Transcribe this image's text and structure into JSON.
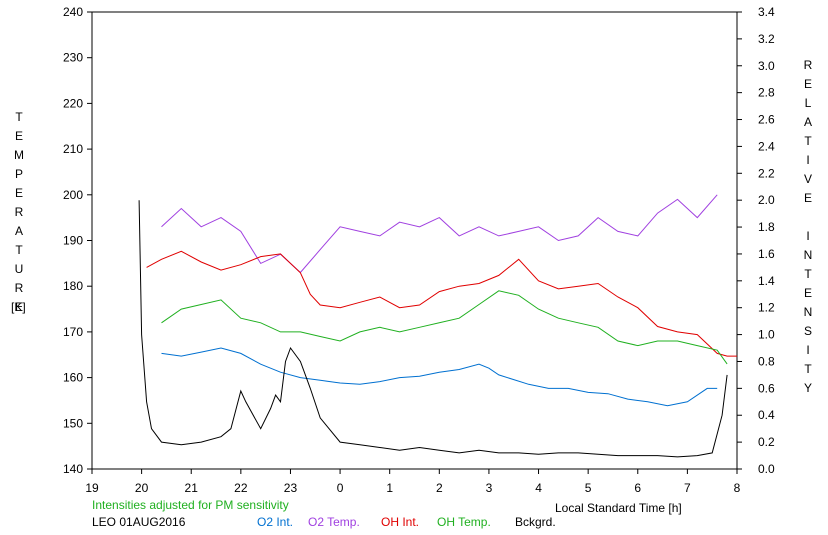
{
  "chart_data": {
    "type": "line",
    "left_axis": {
      "label": "TEMPERATURE",
      "unit": "[K]",
      "ylim": [
        140,
        240
      ],
      "ticks": [
        140,
        150,
        160,
        170,
        180,
        190,
        200,
        210,
        220,
        230,
        240
      ]
    },
    "right_axis": {
      "label": "RELATIVE INTENSITY",
      "ylim": [
        0.0,
        3.4
      ],
      "ticks": [
        "0.0",
        "0.2",
        "0.4",
        "0.6",
        "0.8",
        "1.0",
        "1.2",
        "1.4",
        "1.6",
        "1.8",
        "2.0",
        "2.2",
        "2.4",
        "2.6",
        "2.8",
        "3.0",
        "3.2",
        "3.4"
      ]
    },
    "x_axis": {
      "label": "Local Standard Time [h]",
      "ticks": [
        "19",
        "20",
        "21",
        "22",
        "23",
        "0",
        "1",
        "2",
        "3",
        "4",
        "5",
        "6",
        "7",
        "8"
      ],
      "range": [
        19,
        32
      ]
    },
    "grid": false,
    "note": "Intensities adjusted for PM sensitivity",
    "station_date": "LEO 01AUG2016",
    "legend_placement": "bottom",
    "series": [
      {
        "name": "O2 Int.",
        "axis": "right",
        "color": "#0070d0",
        "points": [
          [
            20.4,
            0.86
          ],
          [
            20.8,
            0.84
          ],
          [
            21.2,
            0.87
          ],
          [
            21.6,
            0.9
          ],
          [
            22.0,
            0.86
          ],
          [
            22.4,
            0.78
          ],
          [
            22.8,
            0.72
          ],
          [
            23.2,
            0.68
          ],
          [
            23.6,
            0.66
          ],
          [
            24.0,
            0.64
          ],
          [
            24.4,
            0.63
          ],
          [
            24.8,
            0.65
          ],
          [
            25.2,
            0.68
          ],
          [
            25.6,
            0.69
          ],
          [
            26.0,
            0.72
          ],
          [
            26.4,
            0.74
          ],
          [
            26.8,
            0.78
          ],
          [
            27.0,
            0.75
          ],
          [
            27.2,
            0.7
          ],
          [
            27.8,
            0.63
          ],
          [
            28.2,
            0.6
          ],
          [
            28.6,
            0.6
          ],
          [
            29.0,
            0.57
          ],
          [
            29.4,
            0.56
          ],
          [
            29.8,
            0.52
          ],
          [
            30.2,
            0.5
          ],
          [
            30.6,
            0.47
          ],
          [
            31.0,
            0.5
          ],
          [
            31.4,
            0.6
          ],
          [
            31.6,
            0.6
          ]
        ]
      },
      {
        "name": "O2 Temp.",
        "axis": "left",
        "color": "#a040e0",
        "points": [
          [
            20.4,
            193
          ],
          [
            20.8,
            197
          ],
          [
            21.2,
            193
          ],
          [
            21.6,
            195
          ],
          [
            22.0,
            192
          ],
          [
            22.4,
            185
          ],
          [
            22.8,
            187
          ],
          [
            23.2,
            183
          ],
          [
            23.6,
            188
          ],
          [
            24.0,
            193
          ],
          [
            24.4,
            192
          ],
          [
            24.8,
            191
          ],
          [
            25.2,
            194
          ],
          [
            25.6,
            193
          ],
          [
            26.0,
            195
          ],
          [
            26.4,
            191
          ],
          [
            26.8,
            193
          ],
          [
            27.2,
            191
          ],
          [
            27.6,
            192
          ],
          [
            28.0,
            193
          ],
          [
            28.4,
            190
          ],
          [
            28.8,
            191
          ],
          [
            29.2,
            195
          ],
          [
            29.6,
            192
          ],
          [
            30.0,
            191
          ],
          [
            30.4,
            196
          ],
          [
            30.8,
            199
          ],
          [
            31.2,
            195
          ],
          [
            31.6,
            200
          ]
        ]
      },
      {
        "name": "OH Int.",
        "axis": "right",
        "color": "#e00000",
        "points": [
          [
            20.1,
            1.5
          ],
          [
            20.4,
            1.56
          ],
          [
            20.8,
            1.62
          ],
          [
            21.2,
            1.54
          ],
          [
            21.6,
            1.48
          ],
          [
            22.0,
            1.52
          ],
          [
            22.4,
            1.58
          ],
          [
            22.8,
            1.6
          ],
          [
            23.2,
            1.46
          ],
          [
            23.4,
            1.3
          ],
          [
            23.6,
            1.22
          ],
          [
            24.0,
            1.2
          ],
          [
            24.4,
            1.24
          ],
          [
            24.8,
            1.28
          ],
          [
            25.2,
            1.2
          ],
          [
            25.6,
            1.22
          ],
          [
            26.0,
            1.32
          ],
          [
            26.4,
            1.36
          ],
          [
            26.8,
            1.38
          ],
          [
            27.2,
            1.44
          ],
          [
            27.6,
            1.56
          ],
          [
            28.0,
            1.4
          ],
          [
            28.4,
            1.34
          ],
          [
            28.8,
            1.36
          ],
          [
            29.2,
            1.38
          ],
          [
            29.6,
            1.28
          ],
          [
            30.0,
            1.2
          ],
          [
            30.4,
            1.06
          ],
          [
            30.8,
            1.02
          ],
          [
            31.2,
            1.0
          ],
          [
            31.6,
            0.86
          ],
          [
            31.8,
            0.84
          ],
          [
            32.0,
            0.84
          ]
        ]
      },
      {
        "name": "OH Temp.",
        "axis": "left",
        "color": "#20b020",
        "points": [
          [
            20.4,
            172
          ],
          [
            20.8,
            175
          ],
          [
            21.2,
            176
          ],
          [
            21.6,
            177
          ],
          [
            22.0,
            173
          ],
          [
            22.4,
            172
          ],
          [
            22.8,
            170
          ],
          [
            23.2,
            170
          ],
          [
            23.6,
            169
          ],
          [
            24.0,
            168
          ],
          [
            24.4,
            170
          ],
          [
            24.8,
            171
          ],
          [
            25.2,
            170
          ],
          [
            25.6,
            171
          ],
          [
            26.0,
            172
          ],
          [
            26.4,
            173
          ],
          [
            26.8,
            176
          ],
          [
            27.2,
            179
          ],
          [
            27.6,
            178
          ],
          [
            28.0,
            175
          ],
          [
            28.4,
            173
          ],
          [
            28.8,
            172
          ],
          [
            29.2,
            171
          ],
          [
            29.6,
            168
          ],
          [
            30.0,
            167
          ],
          [
            30.4,
            168
          ],
          [
            30.8,
            168
          ],
          [
            31.2,
            167
          ],
          [
            31.6,
            166
          ],
          [
            31.8,
            163
          ]
        ]
      },
      {
        "name": "Bckgrd.",
        "axis": "right",
        "color": "#000000",
        "points": [
          [
            19.95,
            2.0
          ],
          [
            20.0,
            1.0
          ],
          [
            20.1,
            0.5
          ],
          [
            20.2,
            0.3
          ],
          [
            20.4,
            0.2
          ],
          [
            20.8,
            0.18
          ],
          [
            21.2,
            0.2
          ],
          [
            21.6,
            0.24
          ],
          [
            21.8,
            0.3
          ],
          [
            22.0,
            0.58
          ],
          [
            22.1,
            0.5
          ],
          [
            22.4,
            0.3
          ],
          [
            22.6,
            0.45
          ],
          [
            22.7,
            0.55
          ],
          [
            22.8,
            0.5
          ],
          [
            22.9,
            0.8
          ],
          [
            23.0,
            0.9
          ],
          [
            23.2,
            0.8
          ],
          [
            23.4,
            0.6
          ],
          [
            23.6,
            0.38
          ],
          [
            24.0,
            0.2
          ],
          [
            24.4,
            0.18
          ],
          [
            24.8,
            0.16
          ],
          [
            25.2,
            0.14
          ],
          [
            25.6,
            0.16
          ],
          [
            26.0,
            0.14
          ],
          [
            26.4,
            0.12
          ],
          [
            26.8,
            0.14
          ],
          [
            27.2,
            0.12
          ],
          [
            27.6,
            0.12
          ],
          [
            28.0,
            0.11
          ],
          [
            28.4,
            0.12
          ],
          [
            28.8,
            0.12
          ],
          [
            29.2,
            0.11
          ],
          [
            29.6,
            0.1
          ],
          [
            30.0,
            0.1
          ],
          [
            30.4,
            0.1
          ],
          [
            30.8,
            0.09
          ],
          [
            31.2,
            0.1
          ],
          [
            31.5,
            0.12
          ],
          [
            31.7,
            0.4
          ],
          [
            31.8,
            0.7
          ]
        ]
      }
    ]
  }
}
